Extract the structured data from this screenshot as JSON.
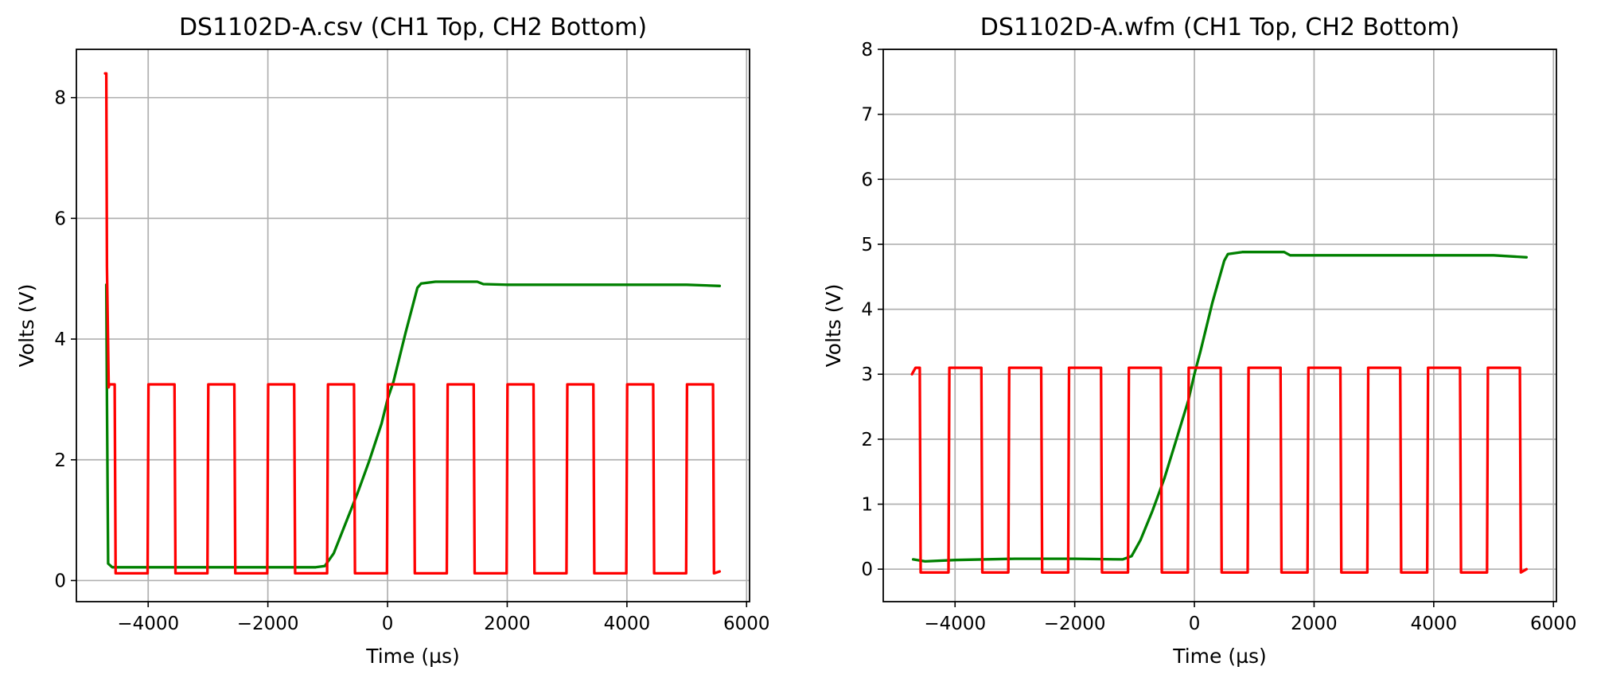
{
  "chart_data": [
    {
      "type": "line",
      "title": "DS1102D-A.csv (CH1 Top, CH2 Bottom)",
      "xlabel": "Time (µs)",
      "ylabel": "Volts (V)",
      "xlim": [
        -5200,
        6050
      ],
      "ylim": [
        -0.35,
        8.8
      ],
      "xticks": [
        -4000,
        -2000,
        0,
        2000,
        4000,
        6000
      ],
      "xtick_labels": [
        "−4000",
        "−2000",
        "0",
        "2000",
        "4000",
        "6000"
      ],
      "yticks": [
        0,
        2,
        4,
        6,
        8
      ],
      "ytick_labels": [
        "0",
        "2",
        "4",
        "6",
        "8"
      ],
      "grid": true,
      "series": [
        {
          "color": "#008000",
          "x": [
            -4700,
            -4690,
            -4670,
            -4600,
            -4000,
            -3000,
            -2000,
            -1200,
            -1050,
            -900,
            -700,
            -500,
            -300,
            -100,
            0,
            100,
            300,
            500,
            560,
            800,
            1100,
            1500,
            1600,
            2000,
            3000,
            4000,
            5000,
            5550
          ],
          "y": [
            4.9,
            3.0,
            0.28,
            0.22,
            0.22,
            0.22,
            0.22,
            0.22,
            0.24,
            0.45,
            0.95,
            1.45,
            2.0,
            2.6,
            3.0,
            3.3,
            4.1,
            4.85,
            4.92,
            4.95,
            4.95,
            4.95,
            4.91,
            4.9,
            4.9,
            4.9,
            4.9,
            4.88
          ]
        },
        {
          "color": "#ff0000",
          "x": [
            -4720,
            -4700,
            -4690,
            -4660,
            -4650,
            -4560,
            -4545,
            -4010,
            -3995,
            -3560,
            -3545,
            -3010,
            -2995,
            -2560,
            -2545,
            -2010,
            -1995,
            -1560,
            -1545,
            -1010,
            -995,
            -560,
            -545,
            -10,
            5,
            440,
            455,
            990,
            1005,
            1440,
            1455,
            1990,
            2005,
            2440,
            2455,
            2990,
            3005,
            3440,
            3455,
            3990,
            4005,
            4440,
            4455,
            4990,
            5005,
            5440,
            5455,
            5550
          ],
          "y": [
            8.4,
            8.4,
            5.2,
            3.2,
            3.25,
            3.25,
            0.12,
            0.12,
            3.25,
            3.25,
            0.12,
            0.12,
            3.25,
            3.25,
            0.12,
            0.12,
            3.25,
            3.25,
            0.12,
            0.12,
            3.25,
            3.25,
            0.12,
            0.12,
            3.25,
            3.25,
            0.12,
            0.12,
            3.25,
            3.25,
            0.12,
            0.12,
            3.25,
            3.25,
            0.12,
            0.12,
            3.25,
            3.25,
            0.12,
            0.12,
            3.25,
            3.25,
            0.12,
            0.12,
            3.25,
            3.25,
            0.12,
            0.15
          ]
        }
      ]
    },
    {
      "type": "line",
      "title": "DS1102D-A.wfm (CH1 Top, CH2 Bottom)",
      "xlabel": "Time (µs)",
      "ylabel": "Volts (V)",
      "xlim": [
        -5200,
        6050
      ],
      "ylim": [
        -0.5,
        8.0
      ],
      "xticks": [
        -4000,
        -2000,
        0,
        2000,
        4000,
        6000
      ],
      "xtick_labels": [
        "−4000",
        "−2000",
        "0",
        "2000",
        "4000",
        "6000"
      ],
      "yticks": [
        0,
        1,
        2,
        3,
        4,
        5,
        6,
        7,
        8
      ],
      "ytick_labels": [
        "0",
        "1",
        "2",
        "3",
        "4",
        "5",
        "6",
        "7",
        "8"
      ],
      "grid": true,
      "series": [
        {
          "color": "#008000",
          "x": [
            -4700,
            -4500,
            -4000,
            -3000,
            -2000,
            -1200,
            -1050,
            -900,
            -700,
            -500,
            -300,
            -100,
            0,
            100,
            300,
            500,
            560,
            800,
            1100,
            1500,
            1600,
            2000,
            3000,
            4000,
            5000,
            5550
          ],
          "y": [
            0.15,
            0.12,
            0.14,
            0.16,
            0.16,
            0.15,
            0.2,
            0.45,
            0.9,
            1.4,
            2.0,
            2.6,
            3.0,
            3.35,
            4.1,
            4.75,
            4.85,
            4.88,
            4.88,
            4.88,
            4.83,
            4.83,
            4.83,
            4.83,
            4.83,
            4.8
          ]
        },
        {
          "color": "#ff0000",
          "x": [
            -4720,
            -4660,
            -4590,
            -4575,
            -4110,
            -4095,
            -3560,
            -3545,
            -3110,
            -3095,
            -2560,
            -2545,
            -2110,
            -2095,
            -1560,
            -1545,
            -1110,
            -1095,
            -560,
            -545,
            -110,
            -95,
            440,
            455,
            890,
            905,
            1440,
            1455,
            1890,
            1905,
            2440,
            2455,
            2890,
            2905,
            3440,
            3455,
            3890,
            3905,
            4440,
            4455,
            4890,
            4905,
            5440,
            5455,
            5550
          ],
          "y": [
            3.0,
            3.1,
            3.1,
            -0.05,
            -0.05,
            3.1,
            3.1,
            -0.05,
            -0.05,
            3.1,
            3.1,
            -0.05,
            -0.05,
            3.1,
            3.1,
            -0.05,
            -0.05,
            3.1,
            3.1,
            -0.05,
            -0.05,
            3.1,
            3.1,
            -0.05,
            -0.05,
            3.1,
            3.1,
            -0.05,
            -0.05,
            3.1,
            3.1,
            -0.05,
            -0.05,
            3.1,
            3.1,
            -0.05,
            -0.05,
            3.1,
            3.1,
            -0.05,
            -0.05,
            3.1,
            3.1,
            -0.05,
            0.0
          ]
        }
      ]
    }
  ]
}
